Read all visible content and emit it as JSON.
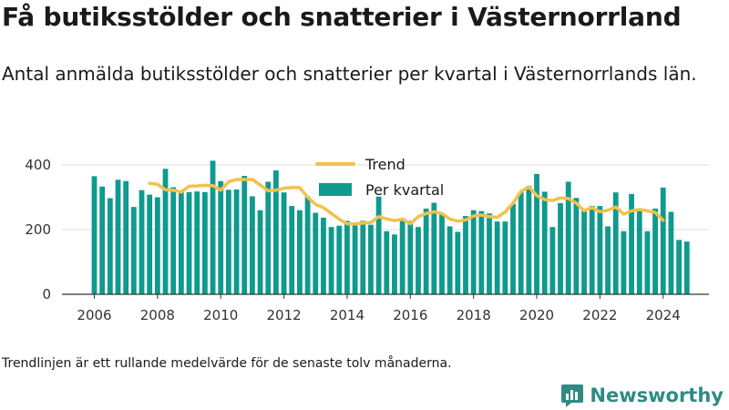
{
  "title": "Få butiksstölder och snatterier i Västernorrland",
  "subtitle": "Antal anmälda butiksstölder och snatterier per kvartal i Västernorrlands län.",
  "note": "Trendlinjen är ett rullande medelvärde för de senaste tolv månaderna.",
  "brand": {
    "name": "Newsworthy",
    "color": "#2e8b84"
  },
  "chart_data": {
    "type": "bar",
    "start_year": 2006,
    "periods_per_year": 4,
    "x_ticks": [
      "2006",
      "2008",
      "2010",
      "2012",
      "2014",
      "2016",
      "2018",
      "2020",
      "2022",
      "2024"
    ],
    "y_ticks": [
      0,
      200,
      400
    ],
    "ylim": [
      0,
      440
    ],
    "grid": true,
    "legend_position": "top-center",
    "colors": {
      "bars": "#0f9a8e",
      "trend": "#f2c14e",
      "grid": "#dddddd",
      "axis": "#333333"
    },
    "series": [
      {
        "name": "Per kvartal",
        "type": "bar",
        "values": [
          365,
          333,
          297,
          354,
          350,
          270,
          322,
          308,
          300,
          388,
          331,
          316,
          316,
          318,
          316,
          413,
          350,
          323,
          324,
          366,
          303,
          260,
          348,
          383,
          315,
          273,
          260,
          303,
          252,
          237,
          208,
          212,
          227,
          213,
          227,
          215,
          302,
          195,
          185,
          235,
          227,
          208,
          265,
          283,
          250,
          210,
          193,
          242,
          260,
          257,
          250,
          225,
          225,
          280,
          315,
          335,
          372,
          317,
          208,
          282,
          348,
          298,
          262,
          273,
          273,
          210,
          315,
          195,
          310,
          262,
          195,
          265,
          330,
          255,
          168,
          163
        ]
      },
      {
        "name": "Trend",
        "type": "line",
        "start_index": 7,
        "values": [
          343,
          340,
          323,
          322,
          316,
          334,
          335,
          337,
          336,
          322,
          348,
          355,
          355,
          355,
          338,
          320,
          322,
          328,
          330,
          330,
          300,
          278,
          268,
          250,
          232,
          218,
          218,
          220,
          222,
          240,
          233,
          228,
          232,
          218,
          240,
          250,
          255,
          250,
          233,
          226,
          230,
          242,
          245,
          240,
          238,
          254,
          282,
          318,
          332,
          305,
          293,
          290,
          298,
          296,
          282,
          258,
          268,
          255,
          260,
          270,
          248,
          258,
          262,
          258,
          253,
          229
        ]
      }
    ]
  }
}
